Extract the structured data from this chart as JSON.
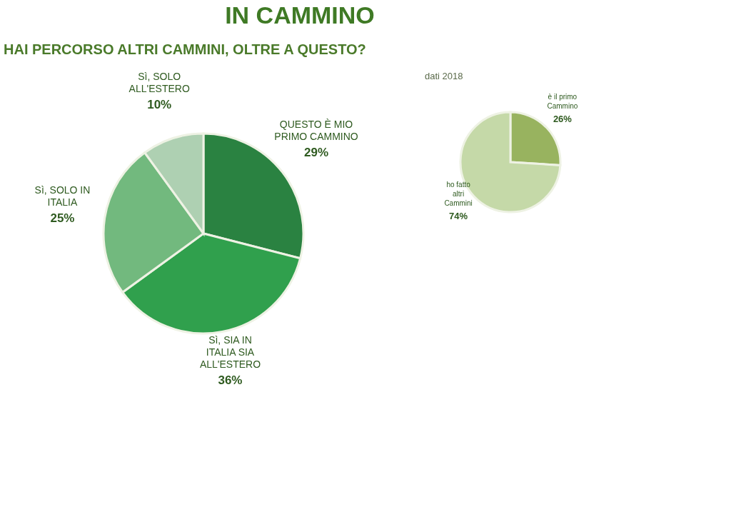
{
  "chart_data": [
    {
      "type": "pie",
      "title": "IN CAMMINO",
      "subtitle": "HAI PERCORSO ALTRI CAMMINI, OLTRE A QUESTO?",
      "categories": [
        "QUESTO È MIO PRIMO CAMMINO",
        "Sì, SIA IN ITALIA SIA ALL'ESTERO",
        "Sì, SOLO IN ITALIA",
        "Sì, SOLO ALL'ESTERO"
      ],
      "values": [
        29,
        36,
        25,
        10
      ],
      "colors": [
        "#2a8241",
        "#30a04d",
        "#72b97e",
        "#aed0b2"
      ],
      "value_labels": [
        "29%",
        "36%",
        "25%",
        "10%"
      ]
    },
    {
      "type": "pie",
      "title": "dati 2018",
      "categories": [
        "è il primo Cammino",
        "ho fatto altri Cammini"
      ],
      "values": [
        26,
        74
      ],
      "colors": [
        "#98b35f",
        "#c5d9a8"
      ],
      "value_labels": [
        "26%",
        "74%"
      ]
    }
  ]
}
